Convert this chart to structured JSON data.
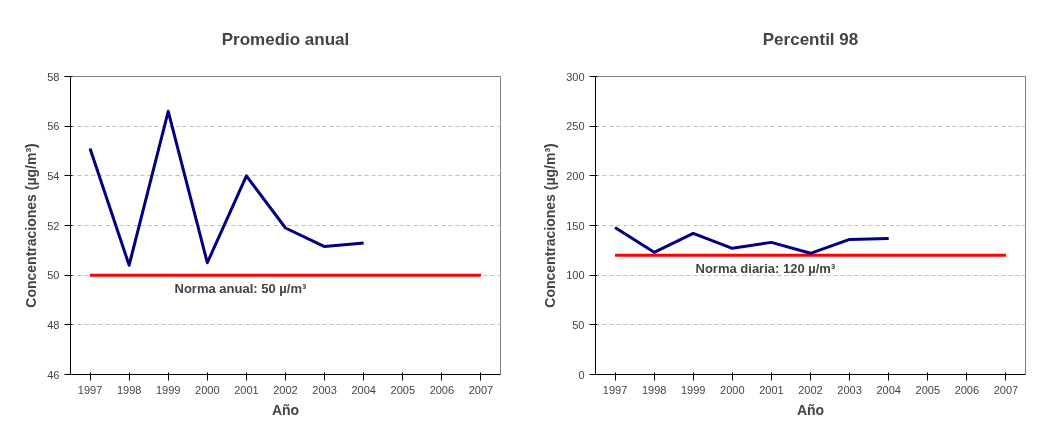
{
  "chart_data": [
    {
      "type": "line",
      "title": "Promedio anual",
      "xlabel": "Año",
      "ylabel": "Concentraciones (µg/m³)",
      "categories": [
        "1997",
        "1998",
        "1999",
        "2000",
        "2001",
        "2002",
        "2003",
        "2004",
        "2005",
        "2006",
        "2007"
      ],
      "series": [
        {
          "color": "#000080",
          "values": [
            55.1,
            50.4,
            56.6,
            50.5,
            54.0,
            51.9,
            51.15,
            51.3,
            null,
            null,
            null
          ]
        }
      ],
      "ylim": [
        46,
        58
      ],
      "yticks": [
        46,
        48,
        50,
        52,
        54,
        56,
        58
      ],
      "grid": "y",
      "ref_lines": [
        {
          "axis": "y",
          "value": 50,
          "label": "Norma anual: 50 µ/m³",
          "color": "#ff0000"
        }
      ]
    },
    {
      "type": "line",
      "title": "Percentil 98",
      "xlabel": "Año",
      "ylabel": "Concentraciones (µg/m³)",
      "categories": [
        "1997",
        "1998",
        "1999",
        "2000",
        "2001",
        "2002",
        "2003",
        "2004",
        "2005",
        "2006",
        "2007"
      ],
      "series": [
        {
          "color": "#000080",
          "values": [
            148,
            123,
            142,
            127,
            133,
            122,
            136,
            137,
            null,
            null,
            null
          ]
        }
      ],
      "ylim": [
        0,
        300
      ],
      "yticks": [
        0,
        50,
        100,
        150,
        200,
        250,
        300
      ],
      "grid": "y",
      "ref_lines": [
        {
          "axis": "y",
          "value": 120,
          "label": "Norma diaria: 120 µ/m³",
          "color": "#ff0000"
        }
      ]
    }
  ]
}
